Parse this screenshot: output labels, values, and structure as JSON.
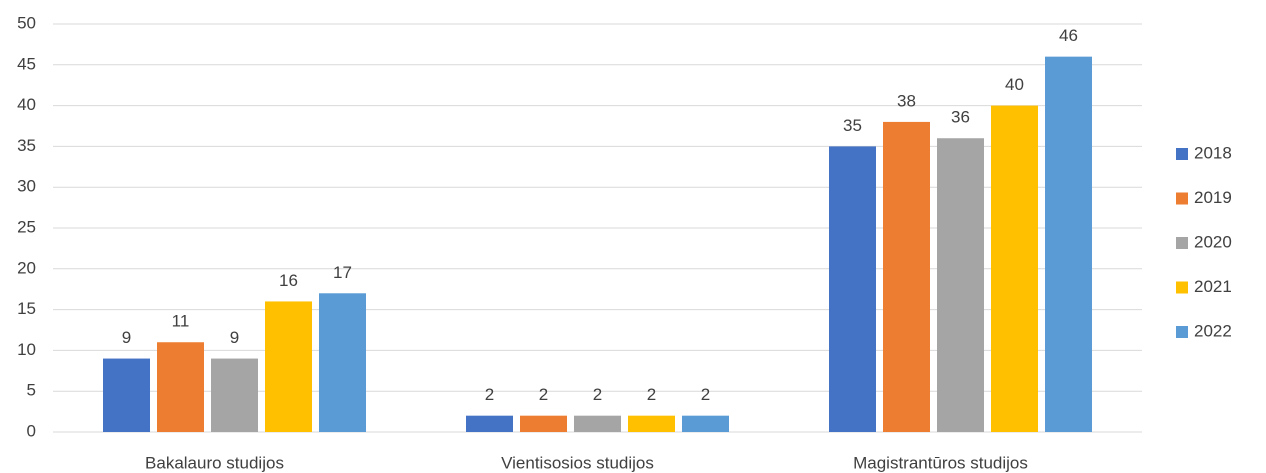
{
  "chart_data": {
    "type": "bar",
    "categories": [
      "Bakalauro studijos",
      "Vientisosios studijos",
      "Magistrantūros studijos"
    ],
    "series": [
      {
        "name": "2018",
        "color": "#4472c4",
        "values": [
          9,
          2,
          35
        ]
      },
      {
        "name": "2019",
        "color": "#ed7d31",
        "values": [
          11,
          2,
          38
        ]
      },
      {
        "name": "2020",
        "color": "#a5a5a5",
        "values": [
          9,
          2,
          36
        ]
      },
      {
        "name": "2021",
        "color": "#ffc000",
        "values": [
          16,
          2,
          40
        ]
      },
      {
        "name": "2022",
        "color": "#5b9bd5",
        "values": [
          17,
          2,
          46
        ]
      }
    ],
    "ylim": [
      0,
      50
    ],
    "yticks": [
      0,
      5,
      10,
      15,
      20,
      25,
      30,
      35,
      40,
      45,
      50
    ],
    "grid": true,
    "legend": "right",
    "data_labels": true
  }
}
